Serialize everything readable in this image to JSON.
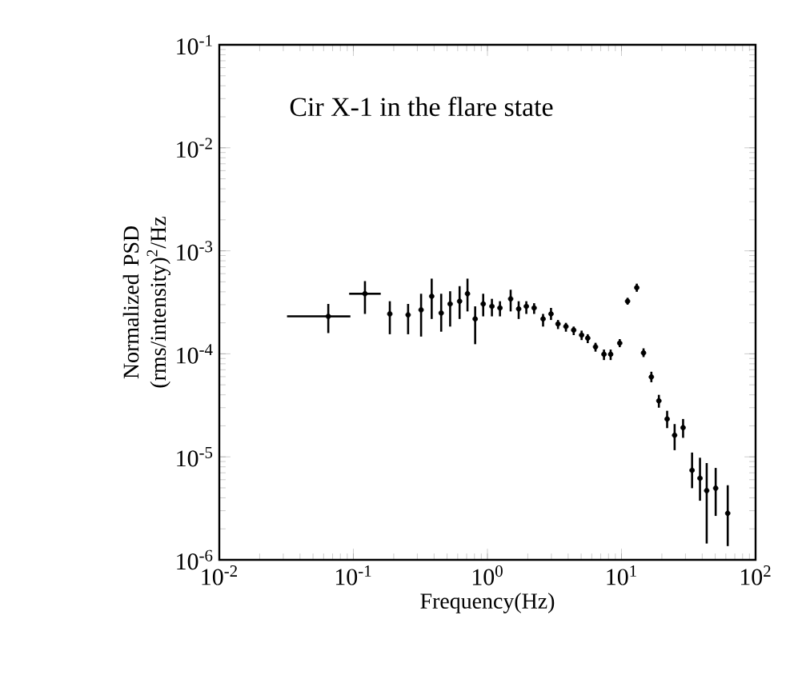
{
  "chart_data": {
    "type": "scatter",
    "xlabel": "Frequency(Hz)",
    "ylabel": "Normalized PSD (rms/intensity)$^{2}$/Hz",
    "log": "xy",
    "color": "#000000",
    "annotations": [
      "Cir X-1 in the flare state"
    ],
    "xlim": [
      0.01,
      100
    ],
    "ylim": [
      1e-06,
      0.1
    ],
    "xticks": [
      {
        "value": 0.01,
        "label": "10$^{-2}$"
      },
      {
        "value": 0.1,
        "label": "10$^{-1}$"
      },
      {
        "value": 1,
        "label": "10$^{0}$"
      },
      {
        "value": 10,
        "label": "10$^{1}$"
      },
      {
        "value": 100,
        "label": "10$^{2}$"
      }
    ],
    "yticks": [
      {
        "value": 1e-06,
        "label": "10$^{-6}$"
      },
      {
        "value": 1e-05,
        "label": "10$^{-5}$"
      },
      {
        "value": 0.0001,
        "label": "10$^{-4}$"
      },
      {
        "value": 0.001,
        "label": "10$^{-3}$"
      },
      {
        "value": 0.01,
        "label": "10$^{-2}$"
      },
      {
        "value": 0.1,
        "label": "10$^{-1}$"
      }
    ],
    "x": [
      0.065,
      0.122,
      0.187,
      0.256,
      0.32,
      0.384,
      0.452,
      0.527,
      0.62,
      0.71,
      0.81,
      0.93,
      1.08,
      1.24,
      1.49,
      1.71,
      1.95,
      2.23,
      2.6,
      2.98,
      3.36,
      3.85,
      4.4,
      5.04,
      5.6,
      6.4,
      7.4,
      8.3,
      9.7,
      11.1,
      13.0,
      14.6,
      16.7,
      19.0,
      21.9,
      24.9,
      28.8,
      33.6,
      38.5,
      43.2,
      50.4,
      62
    ],
    "values": [
      0.000231,
      0.000383,
      0.000244,
      0.000239,
      0.000267,
      0.000362,
      0.000249,
      0.000305,
      0.000324,
      0.000383,
      0.000218,
      0.000305,
      0.000289,
      0.000279,
      0.000342,
      0.000273,
      0.000289,
      0.000279,
      0.000218,
      0.000244,
      0.000195,
      0.000184,
      0.00017,
      0.000152,
      0.000142,
      0.000117,
      9.9e-05,
      9.9e-05,
      0.000127,
      0.000324,
      0.000439,
      0.000102,
      5.96e-05,
      3.5e-05,
      2.33e-05,
      1.62e-05,
      1.92e-05,
      7.4e-06,
      6.2e-06,
      4.7e-06,
      4.96e-06,
      2.83e-06
    ],
    "errors": [
      [
        0.000159,
        0.000305
      ],
      [
        0.000244,
        0.000508
      ],
      [
        0.000155,
        0.000324
      ],
      [
        0.000155,
        0.000305
      ],
      [
        0.000147,
        0.000383
      ],
      [
        0.000218,
        0.000537
      ],
      [
        0.000164,
        0.000383
      ],
      [
        0.000184,
        0.000405
      ],
      [
        0.000218,
        0.000454
      ],
      [
        0.000258,
        0.000537
      ],
      [
        0.000124,
        0.000289
      ],
      [
        0.000231,
        0.000383
      ],
      [
        0.000231,
        0.000342
      ],
      [
        0.000231,
        0.000324
      ],
      [
        0.000258,
        0.000419
      ],
      [
        0.000218,
        0.000324
      ],
      [
        0.000244,
        0.000324
      ],
      [
        0.000244,
        0.00031
      ],
      [
        0.000184,
        0.000244
      ],
      [
        0.000213,
        0.000279
      ],
      [
        0.000174,
        0.000213
      ],
      [
        0.000164,
        0.0002
      ],
      [
        0.000152,
        0.000184
      ],
      [
        0.000136,
        0.000168
      ],
      [
        0.000127,
        0.000155
      ],
      [
        0.000105,
        0.000128
      ],
      [
        8.7e-05,
        0.00011
      ],
      [
        8.7e-05,
        0.00011
      ],
      [
        0.000116,
        0.000139
      ],
      [
        0.0003,
        0.00035
      ],
      [
        0.0004,
        0.00048
      ],
      [
        9.3e-05,
        0.000113
      ],
      [
        5.3e-05,
        6.7e-05
      ],
      [
        3e-05,
        4e-05
      ],
      [
        1.9e-05,
        2.8e-05
      ],
      [
        1.16e-05,
        2.08e-05
      ],
      [
        1.53e-05,
        2.33e-05
      ],
      [
        4.96e-06,
        1.1e-05
      ],
      [
        3.75e-06,
        9.8e-06
      ],
      [
        1.44e-06,
        8.7e-06
      ],
      [
        2.67e-06,
        7.8e-06
      ],
      [
        1.36e-06,
        5.3e-06
      ]
    ],
    "xerrors": [
      [
        0.032,
        0.095
      ],
      [
        0.093,
        0.16
      ],
      null,
      null,
      null,
      null,
      null,
      null,
      null,
      null,
      null,
      null,
      null,
      null,
      null,
      null,
      null,
      null,
      null,
      null,
      null,
      null,
      null,
      null,
      null,
      null,
      null,
      null,
      null,
      null,
      null,
      null,
      null,
      null,
      null,
      null,
      null,
      null,
      null,
      null,
      null,
      null
    ]
  }
}
